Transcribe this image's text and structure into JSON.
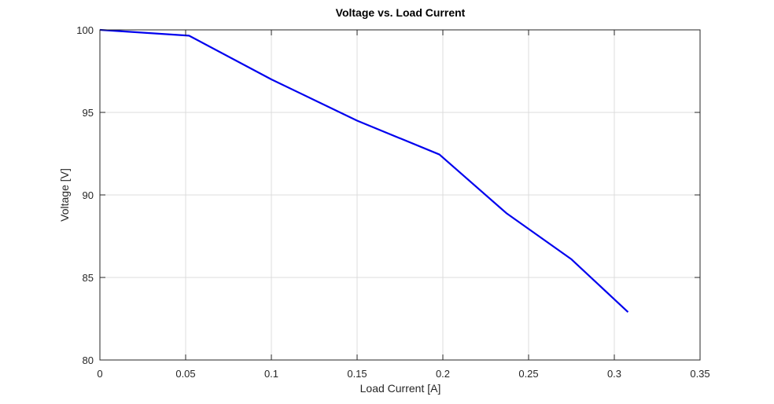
{
  "chart_data": {
    "type": "line",
    "title": "Voltage vs. Load Current",
    "xlabel": "Load Current [A]",
    "ylabel": "Voltage [V]",
    "xlim": [
      0,
      0.35
    ],
    "ylim": [
      80,
      100
    ],
    "xticks": [
      0,
      0.05,
      0.1,
      0.15,
      0.2,
      0.25,
      0.3,
      0.35
    ],
    "xtick_labels": [
      "0",
      "0.05",
      "0.1",
      "0.15",
      "0.2",
      "0.25",
      "0.3",
      "0.35"
    ],
    "yticks": [
      80,
      85,
      90,
      95,
      100
    ],
    "ytick_labels": [
      "80",
      "85",
      "90",
      "95",
      "100"
    ],
    "grid": true,
    "series": [
      {
        "color": "#0000ee",
        "x": [
          0,
          0.052,
          0.1,
          0.15,
          0.198,
          0.237,
          0.275,
          0.308
        ],
        "y": [
          100,
          99.65,
          97.0,
          94.5,
          92.45,
          88.9,
          86.1,
          82.9
        ]
      }
    ]
  }
}
